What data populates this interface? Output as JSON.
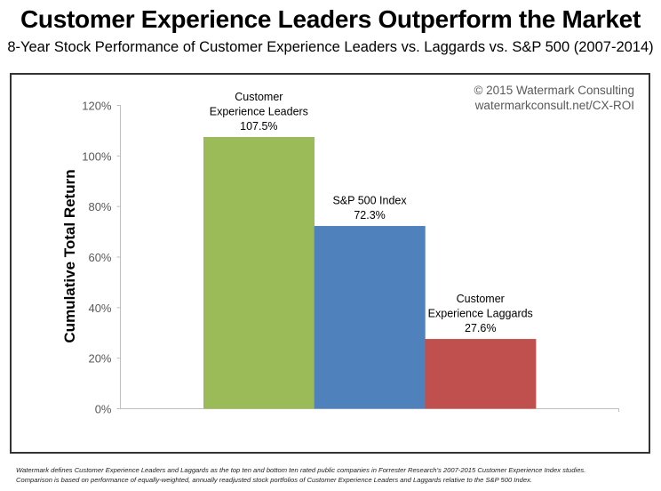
{
  "header": {
    "title": "Customer Experience Leaders Outperform the Market",
    "subtitle": "8-Year Stock Performance of Customer Experience Leaders vs. Laggards vs. S&P 500 (2007-2014)"
  },
  "credit": {
    "line1": "© 2015 Watermark Consulting",
    "line2": "watermarkconsult.net/CX-ROI"
  },
  "footnote": {
    "line1": "Watermark defines Customer Experience Leaders and Laggards as the top ten and bottom ten rated public companies in Forrester Research’s 2007-2015 Customer Experience Index studies.",
    "line2": "Comparison is based on performance of equally-weighted, annually readjusted stock portfolios of Customer Experience Leaders and Laggards relative to the S&P 500 Index."
  },
  "chart_data": {
    "type": "bar",
    "title": "Customer Experience Leaders Outperform the Market",
    "subtitle": "8-Year Stock Performance of Customer Experience Leaders vs. Laggards vs. S&P 500 (2007-2014)",
    "xlabel": "",
    "ylabel": "Cumulative Total Return",
    "ylim": [
      0,
      120
    ],
    "yticks": [
      0,
      20,
      40,
      60,
      80,
      100,
      120
    ],
    "ytick_labels": [
      "0%",
      "20%",
      "40%",
      "60%",
      "80%",
      "100%",
      "120%"
    ],
    "grid": false,
    "legend": "none",
    "categories": [
      "Customer Experience Leaders",
      "S&P 500 Index",
      "Customer Experience Laggards"
    ],
    "values": [
      107.5,
      72.3,
      27.6
    ],
    "data_labels": [
      [
        "Customer",
        "Experience Leaders",
        "107.5%"
      ],
      [
        "S&P 500 Index",
        "72.3%"
      ],
      [
        "Customer",
        "Experience Laggards",
        "27.6%"
      ]
    ],
    "colors": [
      "#9BBB59",
      "#4F81BD",
      "#C0504D"
    ]
  }
}
